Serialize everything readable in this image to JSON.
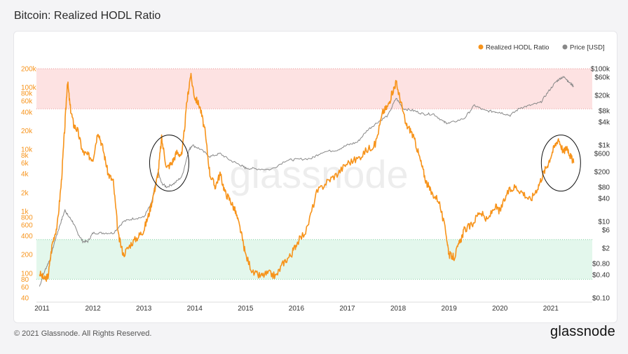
{
  "header": {
    "title": "Bitcoin: Realized HODL Ratio"
  },
  "footer": {
    "copyright": "© 2021 Glassnode. All Rights Reserved.",
    "brand": "glassnode"
  },
  "watermark": "glassnode",
  "colors": {
    "hodl": "#f7931a",
    "price": "#888888",
    "upper_band": "#fde2e2",
    "lower_band": "#e3f7ec",
    "left_axis_text": "#f7931a",
    "right_axis_text": "#333333"
  },
  "chart_data": {
    "type": "line",
    "title": "Bitcoin: Realized HODL Ratio",
    "legend": {
      "placement": "top-right",
      "entries": [
        {
          "name": "Realized HODL Ratio",
          "color": "#f7931a"
        },
        {
          "name": "Price [USD]",
          "color": "#888888"
        }
      ]
    },
    "x_ticks": [
      "2011",
      "2012",
      "2013",
      "2014",
      "2015",
      "2016",
      "2017",
      "2018",
      "2019",
      "2020",
      "2021"
    ],
    "y_left": {
      "scale": "log",
      "range": [
        40,
        200000
      ],
      "ticks": [
        {
          "v": 40,
          "label": "40"
        },
        {
          "v": 60,
          "label": "60"
        },
        {
          "v": 80,
          "label": "80"
        },
        {
          "v": 100,
          "label": "100"
        },
        {
          "v": 200,
          "label": "200"
        },
        {
          "v": 400,
          "label": "400"
        },
        {
          "v": 600,
          "label": "600"
        },
        {
          "v": 800,
          "label": "800"
        },
        {
          "v": 1000,
          "label": "1k"
        },
        {
          "v": 2000,
          "label": "2k"
        },
        {
          "v": 4000,
          "label": "4k"
        },
        {
          "v": 6000,
          "label": "6k"
        },
        {
          "v": 8000,
          "label": "8k"
        },
        {
          "v": 10000,
          "label": "10k"
        },
        {
          "v": 20000,
          "label": "20k"
        },
        {
          "v": 40000,
          "label": "40k"
        },
        {
          "v": 60000,
          "label": "60k"
        },
        {
          "v": 80000,
          "label": "80k"
        },
        {
          "v": 100000,
          "label": "100k"
        },
        {
          "v": 200000,
          "label": "200k"
        }
      ]
    },
    "y_right": {
      "scale": "log",
      "range": [
        0.1,
        100000
      ],
      "ticks": [
        {
          "v": 0.1,
          "label": "$0.10"
        },
        {
          "v": 0.4,
          "label": "$0.40"
        },
        {
          "v": 0.8,
          "label": "$0.80"
        },
        {
          "v": 2,
          "label": "$2"
        },
        {
          "v": 6,
          "label": "$6"
        },
        {
          "v": 10,
          "label": "$10"
        },
        {
          "v": 40,
          "label": "$40"
        },
        {
          "v": 80,
          "label": "$80"
        },
        {
          "v": 200,
          "label": "$200"
        },
        {
          "v": 600,
          "label": "$600"
        },
        {
          "v": 1000,
          "label": "$1k"
        },
        {
          "v": 4000,
          "label": "$4k"
        },
        {
          "v": 8000,
          "label": "$8k"
        },
        {
          "v": 20000,
          "label": "$20k"
        },
        {
          "v": 60000,
          "label": "$60k"
        },
        {
          "v": 100000,
          "label": "$100k"
        }
      ]
    },
    "bands": [
      {
        "axis": "left",
        "from": 45000,
        "to": 200000,
        "color": "#fde2e2"
      },
      {
        "axis": "left",
        "from": 80,
        "to": 350,
        "color": "#e3f7ec"
      }
    ],
    "annotations": [
      {
        "type": "ellipse",
        "x": 2013.5,
        "y": 6000
      },
      {
        "type": "ellipse",
        "x": 2021.2,
        "y": 6000
      }
    ],
    "series": [
      {
        "name": "Realized HODL Ratio",
        "axis": "left",
        "color": "#f7931a",
        "x": [
          2010.95,
          2011.05,
          2011.12,
          2011.2,
          2011.3,
          2011.38,
          2011.45,
          2011.5,
          2011.55,
          2011.62,
          2011.7,
          2011.8,
          2011.9,
          2012.0,
          2012.1,
          2012.2,
          2012.3,
          2012.4,
          2012.5,
          2012.6,
          2012.75,
          2012.9,
          2013.0,
          2013.1,
          2013.2,
          2013.28,
          2013.35,
          2013.45,
          2013.55,
          2013.65,
          2013.75,
          2013.85,
          2013.92,
          2014.0,
          2014.1,
          2014.2,
          2014.3,
          2014.4,
          2014.5,
          2014.6,
          2014.7,
          2014.8,
          2014.9,
          2015.0,
          2015.15,
          2015.3,
          2015.45,
          2015.6,
          2015.75,
          2015.9,
          2016.0,
          2016.2,
          2016.4,
          2016.6,
          2016.8,
          2017.0,
          2017.2,
          2017.4,
          2017.55,
          2017.7,
          2017.8,
          2017.9,
          2017.96,
          2018.05,
          2018.15,
          2018.25,
          2018.35,
          2018.45,
          2018.55,
          2018.65,
          2018.8,
          2018.95,
          2019.0,
          2019.1,
          2019.2,
          2019.3,
          2019.45,
          2019.6,
          2019.75,
          2019.9,
          2020.0,
          2020.15,
          2020.3,
          2020.45,
          2020.6,
          2020.75,
          2020.85,
          2020.95,
          2021.05,
          2021.15,
          2021.25,
          2021.32,
          2021.38,
          2021.45
        ],
        "y": [
          100,
          80,
          90,
          300,
          600,
          3000,
          25000,
          130000,
          50000,
          25000,
          20000,
          9000,
          8000,
          7000,
          20000,
          10000,
          4000,
          3000,
          400,
          200,
          300,
          400,
          500,
          900,
          2000,
          4000,
          15000,
          5000,
          6000,
          9000,
          8000,
          60000,
          160000,
          70000,
          50000,
          20000,
          4000,
          2500,
          4000,
          2000,
          1500,
          1000,
          500,
          200,
          100,
          90,
          100,
          90,
          150,
          200,
          300,
          500,
          2000,
          3000,
          4000,
          6000,
          7000,
          10000,
          12000,
          40000,
          50000,
          90000,
          120000,
          60000,
          25000,
          20000,
          12000,
          6000,
          3000,
          2000,
          1500,
          400,
          200,
          180,
          300,
          500,
          600,
          1000,
          700,
          1200,
          1000,
          2000,
          2500,
          2000,
          1500,
          2500,
          4000,
          6000,
          10000,
          15000,
          9000,
          11000,
          8000,
          6000
        ]
      },
      {
        "name": "Price [USD]",
        "axis": "right",
        "color": "#888888",
        "x": [
          2010.95,
          2011.05,
          2011.15,
          2011.25,
          2011.35,
          2011.45,
          2011.5,
          2011.6,
          2011.7,
          2011.8,
          2011.9,
          2012.0,
          2012.2,
          2012.4,
          2012.6,
          2012.8,
          2013.0,
          2013.15,
          2013.28,
          2013.35,
          2013.45,
          2013.6,
          2013.75,
          2013.88,
          2013.95,
          2014.1,
          2014.3,
          2014.5,
          2014.7,
          2014.9,
          2015.0,
          2015.2,
          2015.5,
          2015.8,
          2016.0,
          2016.3,
          2016.5,
          2016.8,
          2017.0,
          2017.2,
          2017.4,
          2017.6,
          2017.8,
          2017.96,
          2018.1,
          2018.3,
          2018.5,
          2018.7,
          2018.9,
          2019.0,
          2019.3,
          2019.5,
          2019.7,
          2019.9,
          2020.0,
          2020.2,
          2020.4,
          2020.6,
          2020.8,
          2020.95,
          2021.1,
          2021.2,
          2021.28,
          2021.35,
          2021.45
        ],
        "y": [
          0.2,
          0.5,
          1,
          3,
          8,
          20,
          15,
          10,
          5,
          3,
          3,
          5,
          5,
          5,
          10,
          12,
          13,
          30,
          200,
          100,
          80,
          100,
          150,
          700,
          1000,
          800,
          500,
          600,
          400,
          300,
          250,
          240,
          230,
          400,
          420,
          450,
          650,
          750,
          1000,
          1200,
          2500,
          4000,
          6000,
          17000,
          9000,
          8000,
          6500,
          6500,
          4000,
          3700,
          5000,
          11000,
          8000,
          7500,
          7200,
          6000,
          9500,
          11000,
          13000,
          25000,
          45000,
          58000,
          60000,
          45000,
          35000
        ]
      }
    ]
  }
}
